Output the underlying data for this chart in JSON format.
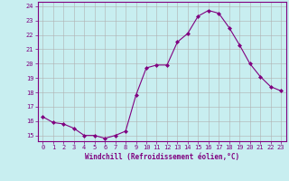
{
  "x": [
    0,
    1,
    2,
    3,
    4,
    5,
    6,
    7,
    8,
    9,
    10,
    11,
    12,
    13,
    14,
    15,
    16,
    17,
    18,
    19,
    20,
    21,
    22,
    23
  ],
  "y": [
    16.3,
    15.9,
    15.8,
    15.5,
    15.0,
    15.0,
    14.8,
    15.0,
    15.3,
    17.8,
    19.7,
    19.9,
    19.9,
    21.5,
    22.1,
    23.3,
    23.7,
    23.5,
    22.5,
    21.3,
    20.0,
    19.1,
    18.4,
    18.1
  ],
  "line_color": "#800080",
  "marker_color": "#800080",
  "bg_color": "#c8eef0",
  "grid_color": "#b0b0b0",
  "xlabel": "Windchill (Refroidissement éolien,°C)",
  "ylabel_ticks": [
    15,
    16,
    17,
    18,
    19,
    20,
    21,
    22,
    23,
    24
  ],
  "xlim": [
    -0.5,
    23.5
  ],
  "ylim": [
    14.6,
    24.3
  ],
  "xticks": [
    0,
    1,
    2,
    3,
    4,
    5,
    6,
    7,
    8,
    9,
    10,
    11,
    12,
    13,
    14,
    15,
    16,
    17,
    18,
    19,
    20,
    21,
    22,
    23
  ]
}
